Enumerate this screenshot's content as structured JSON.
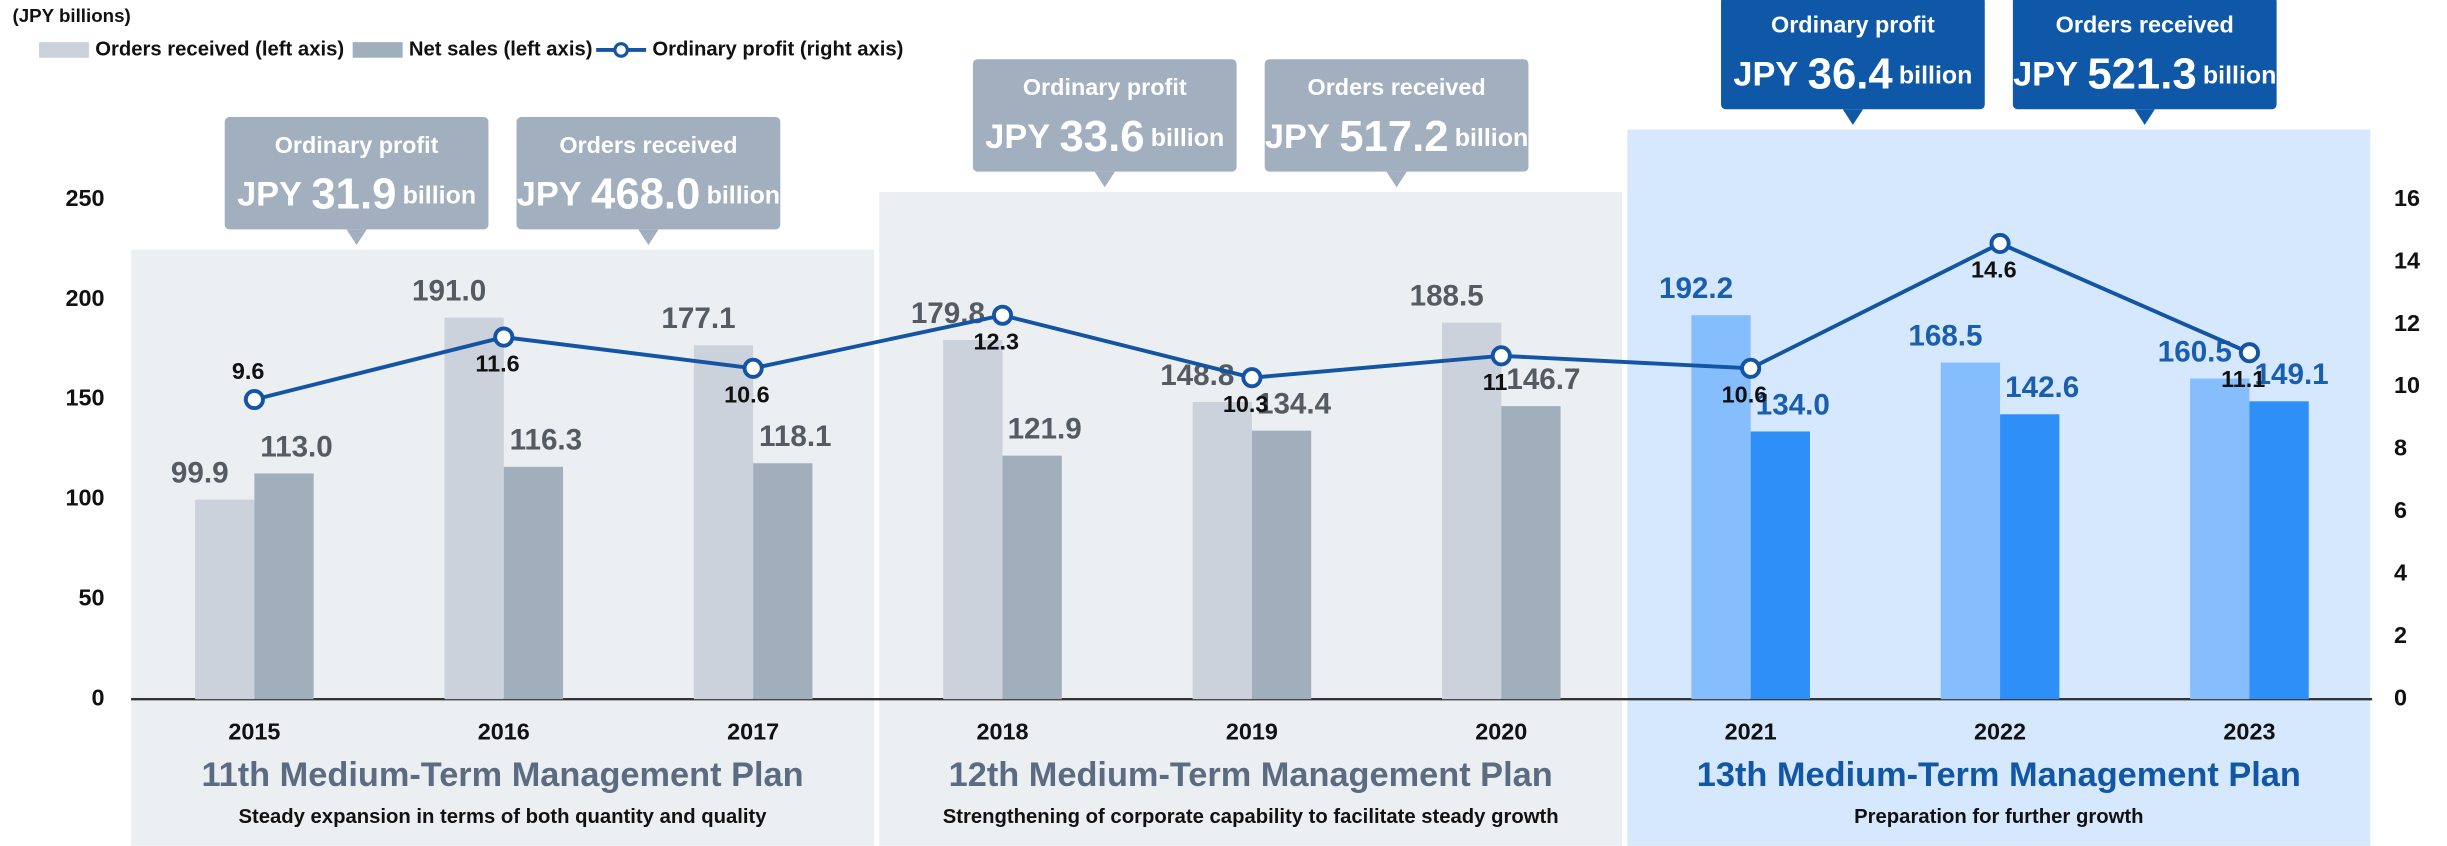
{
  "chart_data": {
    "type": "bar_line",
    "y_label": "(JPY billions)",
    "categories": [
      "2015",
      "2016",
      "2017",
      "2018",
      "2019",
      "2020",
      "2021",
      "2022",
      "2023"
    ],
    "series": [
      {
        "name": "Orders received (left axis)",
        "color": "#cbd2db",
        "colors": [
          "#cbd2db",
          "#cbd2db",
          "#cbd2db",
          "#cbd2db",
          "#cbd2db",
          "#cbd2db",
          "#85bdfd",
          "#85bdfd",
          "#85bdfd"
        ],
        "label_colors": [
          "#555b63",
          "#555b63",
          "#555b63",
          "#555b63",
          "#555b63",
          "#555b63",
          "#1a5fae",
          "#1a5fae",
          "#1a5fae"
        ],
        "values": [
          99.9,
          191.0,
          177.1,
          179.8,
          148.8,
          188.5,
          192.2,
          168.5,
          160.5
        ],
        "value_labels": [
          "99.9",
          "191.0",
          "177.1",
          "179.8",
          "148.8",
          "188.5",
          "192.2",
          "168.5",
          "160.5"
        ]
      },
      {
        "name": "Net sales (left axis)",
        "color": "#a1afbd",
        "colors": [
          "#a1afbd",
          "#a1afbd",
          "#a1afbd",
          "#a1afbd",
          "#a1afbd",
          "#a1afbd",
          "#2f8ff8",
          "#2f8ff8",
          "#2f8ff8"
        ],
        "label_colors": [
          "#555b63",
          "#555b63",
          "#555b63",
          "#555b63",
          "#555b63",
          "#555b63",
          "#1a5fae",
          "#1a5fae",
          "#1a5fae"
        ],
        "values": [
          113.0,
          116.3,
          118.1,
          121.9,
          134.4,
          146.7,
          134.0,
          142.6,
          149.1
        ],
        "value_labels": [
          "113.0",
          "116.3",
          "118.1",
          "121.9",
          "134.4",
          "146.7",
          "134.0",
          "142.6",
          "149.1"
        ]
      },
      {
        "name": "Ordinary profit (right axis)",
        "color": "#1354a4",
        "axis": "y2",
        "values": [
          9.6,
          11.6,
          10.6,
          12.3,
          10.3,
          11.0,
          10.6,
          14.6,
          11.1
        ],
        "label_positions": [
          "above",
          "below",
          "below",
          "below",
          "below",
          "below",
          "below",
          "below",
          "below"
        ]
      }
    ],
    "ylim": [
      0,
      250
    ],
    "yticks": [
      0,
      50,
      100,
      150,
      200,
      250
    ],
    "y2lim": [
      0,
      16
    ],
    "y2ticks": [
      0,
      2,
      4,
      6,
      8,
      10,
      12,
      14,
      16
    ],
    "plans": [
      {
        "title": "11th Medium-Term Management Plan",
        "subtitle": "Steady expansion in terms of both quantity and quality",
        "color": "#eceff2",
        "title_color": "#5a6b82",
        "callout_color": "#a2afbe",
        "callouts": [
          {
            "title": "Ordinary profit",
            "currency": "JPY",
            "amount": "31.9",
            "unit": "billion"
          },
          {
            "title": "Orders received",
            "currency": "JPY",
            "amount": "468.0",
            "unit": "billion"
          }
        ]
      },
      {
        "title": "12th Medium-Term Management Plan",
        "subtitle": "Strengthening of corporate capability to facilitate steady growth",
        "color": "#eceff2",
        "title_color": "#5a6b82",
        "callout_color": "#a2afbe",
        "callouts": [
          {
            "title": "Ordinary profit",
            "currency": "JPY",
            "amount": "33.6",
            "unit": "billion"
          },
          {
            "title": "Orders received",
            "currency": "JPY",
            "amount": "517.2",
            "unit": "billion"
          }
        ]
      },
      {
        "title": "13th Medium-Term Management Plan",
        "subtitle": "Preparation for further growth",
        "color": "#d6e8fd",
        "title_color": "#1257a6",
        "callout_color": "#0f58a8",
        "callouts": [
          {
            "title": "Ordinary profit",
            "currency": "JPY",
            "amount": "36.4",
            "unit": "billion"
          },
          {
            "title": "Orders received",
            "currency": "JPY",
            "amount": "521.3",
            "unit": "billion"
          }
        ]
      }
    ]
  }
}
